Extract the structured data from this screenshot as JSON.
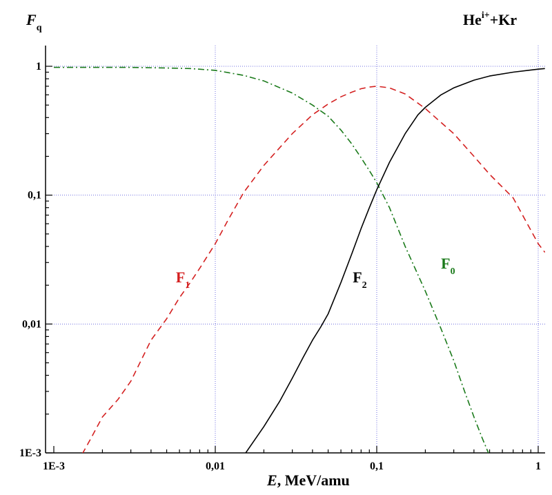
{
  "chart_data": {
    "type": "line",
    "title": "He^{i+}+Kr",
    "title_parts": {
      "base": "He",
      "sup": "i+",
      "rest": "+Kr"
    },
    "xlabel_italic": "E",
    "xlabel_rest": ", MeV/amu",
    "ylabel_base": "F",
    "ylabel_sub": "q",
    "x_scale": "log",
    "y_scale": "log",
    "xlim": [
      0.001,
      1.1
    ],
    "ylim": [
      0.001,
      1.6
    ],
    "grid": true,
    "x_ticks": [
      {
        "value": 0.001,
        "label": "1E-3"
      },
      {
        "value": 0.01,
        "label": "0,01"
      },
      {
        "value": 0.1,
        "label": "0,1"
      },
      {
        "value": 1,
        "label": "1"
      }
    ],
    "y_ticks": [
      {
        "value": 0.001,
        "label": "1E-3"
      },
      {
        "value": 0.01,
        "label": "0,01"
      },
      {
        "value": 0.1,
        "label": "0,1"
      },
      {
        "value": 1,
        "label": "1"
      }
    ],
    "series": [
      {
        "name": "F_0",
        "label_base": "F",
        "label_sub": "0",
        "color": "#1a7a1a",
        "dash": "dashdot",
        "label_at": [
          0.25,
          0.027
        ],
        "x": [
          0.001,
          0.002,
          0.003,
          0.005,
          0.007,
          0.01,
          0.015,
          0.02,
          0.03,
          0.04,
          0.05,
          0.06,
          0.07,
          0.08,
          0.09,
          0.1,
          0.12,
          0.15,
          0.2,
          0.25,
          0.3,
          0.35,
          0.4,
          0.45,
          0.5
        ],
        "y": [
          0.98,
          0.98,
          0.98,
          0.97,
          0.96,
          0.93,
          0.85,
          0.77,
          0.62,
          0.5,
          0.41,
          0.32,
          0.25,
          0.195,
          0.155,
          0.125,
          0.08,
          0.04,
          0.018,
          0.0092,
          0.0052,
          0.003,
          0.0019,
          0.0013,
          0.00095
        ]
      },
      {
        "name": "F_1",
        "label_base": "F",
        "label_sub": "1",
        "color": "#d42020",
        "dash": "dashed",
        "label_at": [
          0.0057,
          0.021
        ],
        "x": [
          0.0015,
          0.0017,
          0.002,
          0.0025,
          0.003,
          0.004,
          0.005,
          0.006,
          0.007,
          0.008,
          0.01,
          0.012,
          0.015,
          0.02,
          0.03,
          0.04,
          0.05,
          0.06,
          0.07,
          0.08,
          0.09,
          0.1,
          0.12,
          0.15,
          0.2,
          0.3,
          0.4,
          0.5,
          0.7,
          1.0,
          1.1
        ],
        "y": [
          0.00098,
          0.0013,
          0.0019,
          0.0026,
          0.0036,
          0.0075,
          0.011,
          0.016,
          0.021,
          0.027,
          0.042,
          0.064,
          0.105,
          0.17,
          0.3,
          0.42,
          0.51,
          0.58,
          0.63,
          0.67,
          0.69,
          0.7,
          0.68,
          0.61,
          0.47,
          0.3,
          0.2,
          0.145,
          0.095,
          0.042,
          0.036
        ]
      },
      {
        "name": "F_2",
        "label_base": "F",
        "label_sub": "2",
        "color": "#000000",
        "dash": "solid",
        "label_at": [
          0.071,
          0.021
        ],
        "x": [
          0.015,
          0.02,
          0.025,
          0.03,
          0.035,
          0.04,
          0.045,
          0.05,
          0.06,
          0.07,
          0.08,
          0.09,
          0.1,
          0.12,
          0.15,
          0.18,
          0.2,
          0.25,
          0.3,
          0.4,
          0.5,
          0.7,
          1.0,
          1.1
        ],
        "y": [
          0.00095,
          0.0016,
          0.0025,
          0.0038,
          0.0055,
          0.0075,
          0.0095,
          0.012,
          0.021,
          0.035,
          0.055,
          0.08,
          0.11,
          0.18,
          0.3,
          0.42,
          0.48,
          0.6,
          0.68,
          0.78,
          0.84,
          0.9,
          0.95,
          0.96
        ]
      }
    ]
  }
}
